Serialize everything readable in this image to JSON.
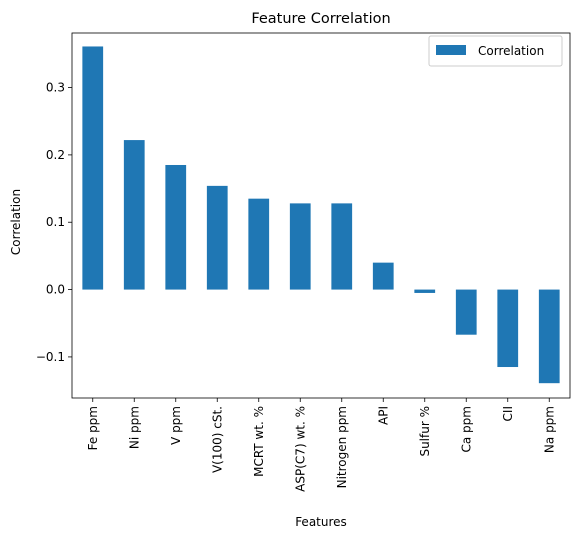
{
  "chart_data": {
    "type": "bar",
    "title": "Feature Correlation",
    "xlabel": "Features",
    "ylabel": "Correlation",
    "categories": [
      "Fe ppm",
      "Ni ppm",
      "V ppm",
      "V(100) cSt.",
      "MCRT wt. %",
      "ASP(C7) wt. %",
      "Nitrogen ppm",
      "API",
      "Sulfur %",
      "Ca ppm",
      "CII",
      "Na ppm"
    ],
    "series": [
      {
        "name": "Correlation",
        "color": "#1f77b4",
        "values": [
          0.361,
          0.222,
          0.185,
          0.154,
          0.135,
          0.128,
          0.128,
          0.04,
          -0.005,
          -0.067,
          -0.115,
          -0.139
        ]
      }
    ],
    "ylim": [
      -0.161,
      0.381
    ],
    "yticks": [
      -0.1,
      0.0,
      0.1,
      0.2,
      0.3
    ],
    "ytick_labels": [
      "−0.1",
      "0.0",
      "0.1",
      "0.2",
      "0.3"
    ],
    "legend": {
      "position": "top-right",
      "entries": [
        "Correlation"
      ]
    },
    "grid": false
  }
}
